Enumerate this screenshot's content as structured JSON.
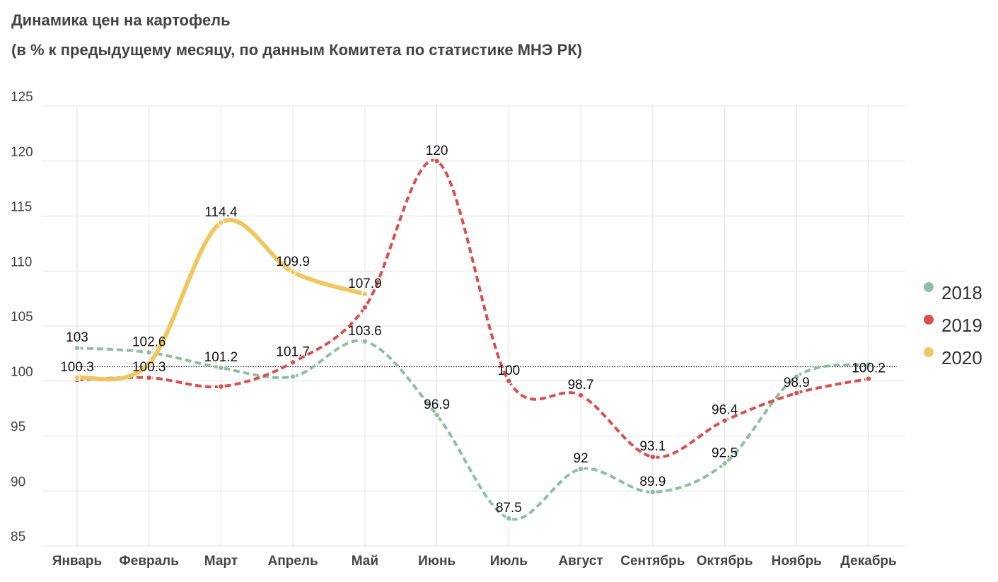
{
  "chart_data": {
    "type": "line",
    "title": "Динамика цен на картофель",
    "subtitle": "(в % к предыдущему месяцу, по данным Комитета по статистике МНЭ РК)",
    "categories": [
      "Январь",
      "Февраль",
      "Март",
      "Апрель",
      "Май",
      "Июнь",
      "Июль",
      "Август",
      "Сентябрь",
      "Октябрь",
      "Ноябрь",
      "Декабрь"
    ],
    "series": [
      {
        "name": "2018",
        "color": "#8fbfa0",
        "dashed": true,
        "values": [
          103,
          102.6,
          101.2,
          100.4,
          103.6,
          96.9,
          87.5,
          92,
          89.9,
          92.5,
          100.4,
          101.5
        ],
        "value_labels": [
          "103",
          "102.6",
          "101.2",
          null,
          "103.6",
          "96.9",
          "87.5",
          "92",
          "89.9",
          "92.5",
          null,
          null
        ]
      },
      {
        "name": "2019",
        "color": "#d94f4f",
        "dashed": true,
        "values": [
          100.1,
          100.3,
          99.5,
          101.7,
          106.7,
          120,
          100,
          98.7,
          93.1,
          96.4,
          98.9,
          100.2
        ],
        "value_labels": [
          null,
          "100.3",
          null,
          "101.7",
          null,
          "120",
          "100",
          "98.7",
          "93.1",
          "96.4",
          "98.9",
          "100.2"
        ]
      },
      {
        "name": "2020",
        "color": "#f0c75e",
        "dashed": false,
        "values": [
          100.3,
          101.6,
          114.4,
          109.9,
          107.9,
          null,
          null,
          null,
          null,
          null,
          null,
          null
        ],
        "value_labels": [
          "100.3",
          null,
          "114.4",
          "109.9",
          "107.9",
          null,
          null,
          null,
          null,
          null,
          null,
          null
        ]
      }
    ],
    "ylim": [
      85,
      125
    ],
    "yticks": [
      85,
      90,
      95,
      100,
      105,
      110,
      115,
      120,
      125
    ],
    "reference_line": 101.3,
    "grid": true,
    "legend": "right"
  }
}
